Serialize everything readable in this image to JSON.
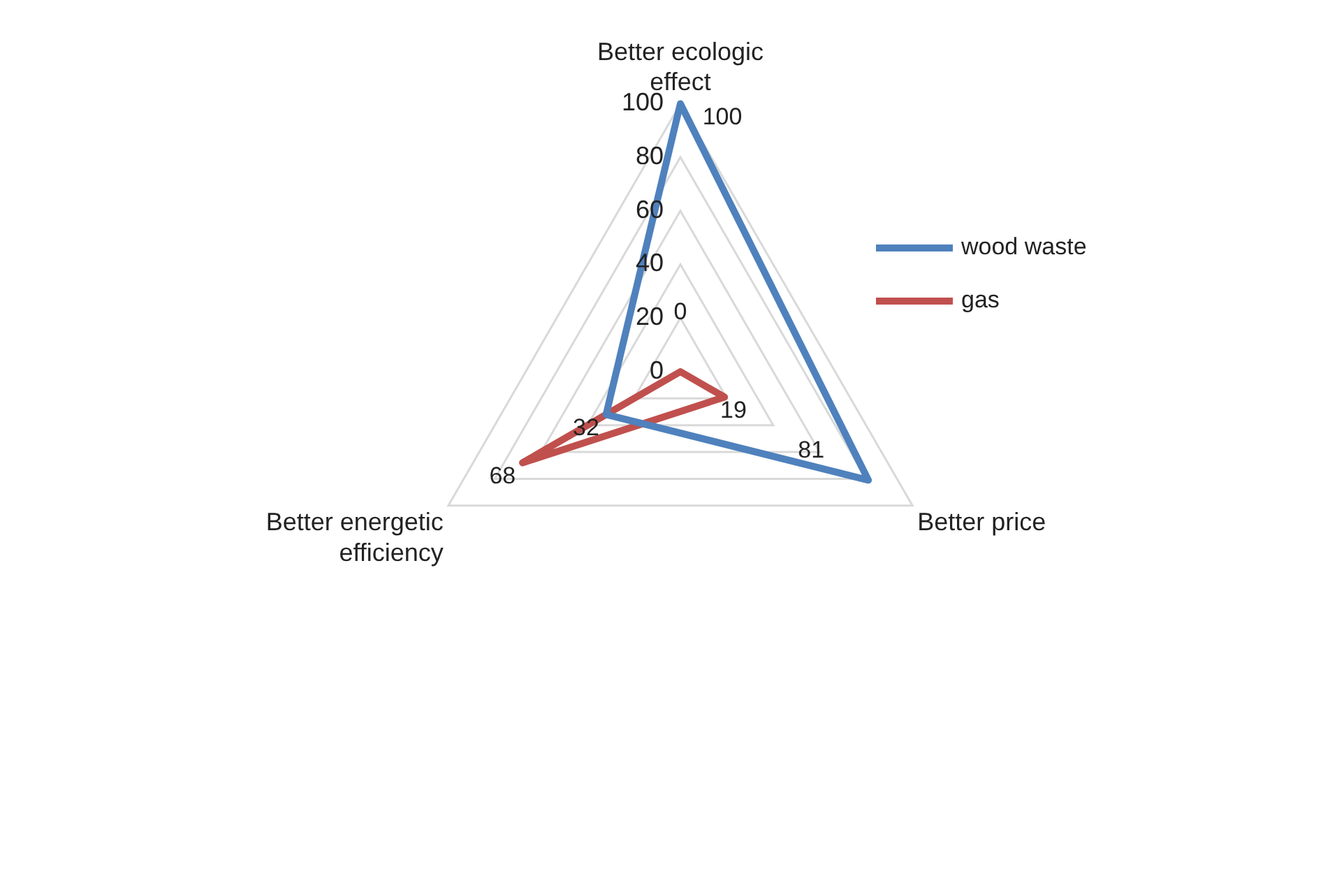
{
  "chart_data": {
    "type": "radar",
    "categories": [
      "Better ecologic effect",
      "Better price",
      "Better energetic efficiency"
    ],
    "series": [
      {
        "name": "wood waste",
        "color": "#4f81bd",
        "values": [
          100,
          81,
          32
        ]
      },
      {
        "name": "gas",
        "color": "#c0504d",
        "values": [
          0,
          19,
          68
        ]
      }
    ],
    "ylim": [
      0,
      100
    ],
    "yticks": [
      0,
      20,
      40,
      60,
      80,
      100
    ],
    "grid": true,
    "legend": "right",
    "data_labels": true,
    "marker": "none"
  }
}
